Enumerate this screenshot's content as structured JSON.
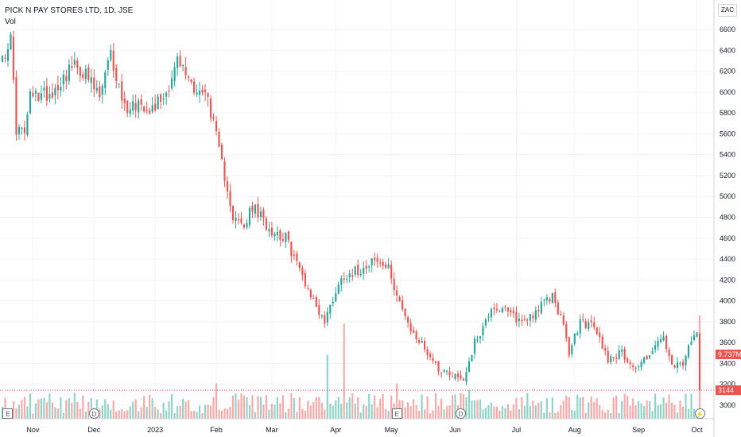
{
  "legend": {
    "symbol": "PICK N PAY STORES LTD, 1D, JSE",
    "volume_label": "Vol"
  },
  "currency": "ZAC",
  "price_axis": {
    "ticks": [
      3000,
      3200,
      3400,
      3600,
      3800,
      4000,
      4200,
      4400,
      4600,
      4800,
      5000,
      5200,
      5400,
      5600,
      5800,
      6000,
      6200,
      6400,
      6600
    ]
  },
  "time_axis": {
    "labels": [
      "Nov",
      "Dec",
      "2023",
      "Feb",
      "Mar",
      "Apr",
      "May",
      "Jun",
      "Jul",
      "Aug",
      "Sep",
      "Oct"
    ]
  },
  "markers": [
    {
      "type": "E",
      "label": "E"
    },
    {
      "type": "D",
      "label": "D"
    },
    {
      "type": "E",
      "label": "E"
    },
    {
      "type": "D",
      "label": "D"
    },
    {
      "type": "flash",
      "label": "⚡"
    }
  ],
  "tags": {
    "volume": "9.737M",
    "last_price": "3144"
  },
  "colors": {
    "up": "#26a69a",
    "down": "#ef5350",
    "up_vol": "#8fd3c8",
    "down_vol": "#f7a9a7",
    "grid": "#f0f3fa",
    "tag": "#ef5350"
  },
  "chart_data": {
    "type": "candlestick",
    "title": "PICK N PAY STORES LTD, 1D, JSE",
    "currency": "ZAC",
    "ylim": [
      2900,
      6750
    ],
    "start_date": "2022-10-17",
    "last_close": 3144,
    "anchors": [
      [
        "2022-10-17",
        6350
      ],
      [
        "2022-10-20",
        6500
      ],
      [
        "2022-10-24",
        5650
      ],
      [
        "2022-10-27",
        5600
      ],
      [
        "2022-10-31",
        5950
      ],
      [
        "2022-11-10",
        6000
      ],
      [
        "2022-11-21",
        6250
      ],
      [
        "2022-11-25",
        6200
      ],
      [
        "2022-12-05",
        5950
      ],
      [
        "2022-12-09",
        6350
      ],
      [
        "2022-12-16",
        5850
      ],
      [
        "2022-12-23",
        5900
      ],
      [
        "2022-12-30",
        5850
      ],
      [
        "2023-01-06",
        6000
      ],
      [
        "2023-01-12",
        6300
      ],
      [
        "2023-01-20",
        6050
      ],
      [
        "2023-01-27",
        5950
      ],
      [
        "2023-02-03",
        5300
      ],
      [
        "2023-02-07",
        5100
      ],
      [
        "2023-02-09",
        4800
      ],
      [
        "2023-02-15",
        4700
      ],
      [
        "2023-02-20",
        4900
      ],
      [
        "2023-02-28",
        4700
      ],
      [
        "2023-03-08",
        4600
      ],
      [
        "2023-03-15",
        4300
      ],
      [
        "2023-03-22",
        4000
      ],
      [
        "2023-03-28",
        3800
      ],
      [
        "2023-04-03",
        4100
      ],
      [
        "2023-04-06",
        4250
      ],
      [
        "2023-04-14",
        4300
      ],
      [
        "2023-04-20",
        4400
      ],
      [
        "2023-04-28",
        4300
      ],
      [
        "2023-05-04",
        4000
      ],
      [
        "2023-05-09",
        3750
      ],
      [
        "2023-05-17",
        3550
      ],
      [
        "2023-05-24",
        3350
      ],
      [
        "2023-05-31",
        3300
      ],
      [
        "2023-06-06",
        3250
      ],
      [
        "2023-06-12",
        3600
      ],
      [
        "2023-06-16",
        3800
      ],
      [
        "2023-06-20",
        3950
      ],
      [
        "2023-06-27",
        3900
      ],
      [
        "2023-07-05",
        3800
      ],
      [
        "2023-07-12",
        3900
      ],
      [
        "2023-07-20",
        4050
      ],
      [
        "2023-07-25",
        3850
      ],
      [
        "2023-07-28",
        3500
      ],
      [
        "2023-08-03",
        3800
      ],
      [
        "2023-08-10",
        3750
      ],
      [
        "2023-08-17",
        3450
      ],
      [
        "2023-08-24",
        3500
      ],
      [
        "2023-08-31",
        3350
      ],
      [
        "2023-09-07",
        3500
      ],
      [
        "2023-09-14",
        3650
      ],
      [
        "2023-09-19",
        3350
      ],
      [
        "2023-09-25",
        3400
      ],
      [
        "2023-09-28",
        3600
      ],
      [
        "2023-10-02",
        3700
      ],
      [
        "2023-10-03",
        3144
      ]
    ],
    "volume_spikes": [
      [
        "2023-03-29",
        0.62
      ],
      [
        "2023-04-06",
        0.92
      ],
      [
        "2023-02-01",
        0.34
      ],
      [
        "2023-05-03",
        0.34
      ],
      [
        "2023-06-08",
        0.28
      ],
      [
        "2023-10-03",
        1.0
      ],
      [
        "2023-09-28",
        0.24
      ]
    ],
    "volume_scale": "relative"
  }
}
